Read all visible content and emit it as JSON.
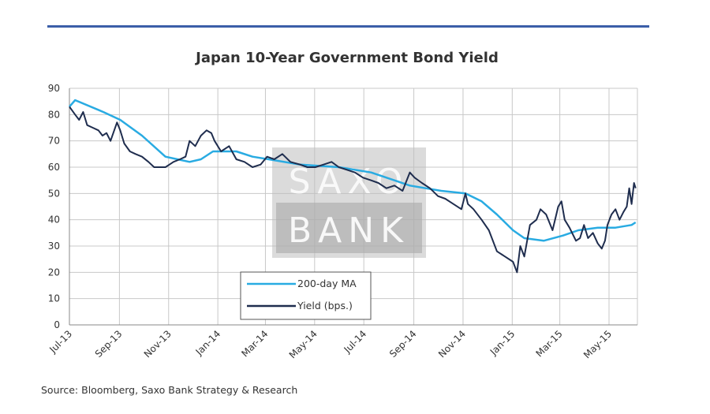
{
  "chart_data": {
    "type": "line",
    "title": "Japan 10-Year Government Bond Yield",
    "source": "Source: Bloomberg, Saxo Bank Strategy & Research",
    "watermark": [
      "SAXO",
      "BANK"
    ],
    "ylim": [
      0,
      90
    ],
    "yticks": [
      0,
      10,
      20,
      30,
      40,
      50,
      60,
      70,
      80,
      90
    ],
    "xtick_labels": [
      "Jul-13",
      "Sep-13",
      "Nov-13",
      "Jan-14",
      "Mar-14",
      "May-14",
      "Jul-14",
      "Sep-14",
      "Nov-14",
      "Jan-15",
      "Mar-15",
      "May-15"
    ],
    "xtick_dates": [
      "2013-07-01",
      "2013-09-01",
      "2013-11-01",
      "2014-01-01",
      "2014-03-01",
      "2014-05-01",
      "2014-07-01",
      "2014-09-01",
      "2014-11-01",
      "2015-01-01",
      "2015-03-01",
      "2015-05-01"
    ],
    "grid": true,
    "legend_position": "bottom-center",
    "series": [
      {
        "name": "200-day MA",
        "color": "#29abe2",
        "points": [
          [
            "2013-07-01",
            83
          ],
          [
            "2013-07-08",
            85.5
          ],
          [
            "2013-08-12",
            81
          ],
          [
            "2013-09-02",
            78
          ],
          [
            "2013-09-29",
            72
          ],
          [
            "2013-10-28",
            64
          ],
          [
            "2013-11-12",
            63
          ],
          [
            "2013-11-27",
            62
          ],
          [
            "2013-12-11",
            63
          ],
          [
            "2013-12-26",
            66
          ],
          [
            "2014-01-24",
            66
          ],
          [
            "2014-02-13",
            64
          ],
          [
            "2014-03-05",
            63
          ],
          [
            "2014-04-13",
            61
          ],
          [
            "2014-05-31",
            60
          ],
          [
            "2014-07-10",
            58
          ],
          [
            "2014-08-08",
            55
          ],
          [
            "2014-08-27",
            53
          ],
          [
            "2014-10-05",
            51
          ],
          [
            "2014-11-04",
            50
          ],
          [
            "2014-11-24",
            47
          ],
          [
            "2014-12-13",
            42
          ],
          [
            "2015-01-02",
            36
          ],
          [
            "2015-01-16",
            33
          ],
          [
            "2015-02-09",
            32
          ],
          [
            "2015-03-05",
            34
          ],
          [
            "2015-03-24",
            36
          ],
          [
            "2015-04-17",
            37
          ],
          [
            "2015-05-09",
            37
          ],
          [
            "2015-05-29",
            38
          ],
          [
            "2015-06-03",
            39
          ]
        ]
      },
      {
        "name": "Yield (bps.)",
        "color": "#1f2d4e",
        "points": [
          [
            "2013-07-01",
            83
          ],
          [
            "2013-07-08",
            80
          ],
          [
            "2013-07-13",
            78
          ],
          [
            "2013-07-18",
            81
          ],
          [
            "2013-07-23",
            76
          ],
          [
            "2013-07-30",
            75
          ],
          [
            "2013-08-06",
            74
          ],
          [
            "2013-08-11",
            72
          ],
          [
            "2013-08-16",
            73
          ],
          [
            "2013-08-21",
            70
          ],
          [
            "2013-08-29",
            77
          ],
          [
            "2013-09-02",
            74
          ],
          [
            "2013-09-07",
            69
          ],
          [
            "2013-09-14",
            66
          ],
          [
            "2013-09-21",
            65
          ],
          [
            "2013-09-29",
            64
          ],
          [
            "2013-10-07",
            62
          ],
          [
            "2013-10-14",
            60
          ],
          [
            "2013-10-19",
            60
          ],
          [
            "2013-10-28",
            60
          ],
          [
            "2013-11-02",
            61
          ],
          [
            "2013-11-07",
            62
          ],
          [
            "2013-11-15",
            63
          ],
          [
            "2013-11-22",
            64
          ],
          [
            "2013-11-27",
            70
          ],
          [
            "2013-12-04",
            68
          ],
          [
            "2013-12-11",
            72
          ],
          [
            "2013-12-18",
            74
          ],
          [
            "2013-12-24",
            73
          ],
          [
            "2013-12-28",
            70
          ],
          [
            "2014-01-05",
            66
          ],
          [
            "2014-01-15",
            68
          ],
          [
            "2014-01-24",
            63
          ],
          [
            "2014-02-03",
            62
          ],
          [
            "2014-02-13",
            60
          ],
          [
            "2014-02-23",
            61
          ],
          [
            "2014-03-03",
            64
          ],
          [
            "2014-03-12",
            63
          ],
          [
            "2014-03-22",
            65
          ],
          [
            "2014-04-01",
            62
          ],
          [
            "2014-04-13",
            61
          ],
          [
            "2014-04-22",
            60
          ],
          [
            "2014-05-02",
            60
          ],
          [
            "2014-05-12",
            61
          ],
          [
            "2014-05-22",
            62
          ],
          [
            "2014-05-31",
            60
          ],
          [
            "2014-06-10",
            59
          ],
          [
            "2014-06-20",
            58
          ],
          [
            "2014-06-30",
            56
          ],
          [
            "2014-07-10",
            55
          ],
          [
            "2014-07-19",
            54
          ],
          [
            "2014-07-29",
            52
          ],
          [
            "2014-08-08",
            53
          ],
          [
            "2014-08-18",
            51
          ],
          [
            "2014-08-27",
            58
          ],
          [
            "2014-09-02",
            56
          ],
          [
            "2014-09-11",
            54
          ],
          [
            "2014-09-21",
            52
          ],
          [
            "2014-10-01",
            49
          ],
          [
            "2014-10-10",
            48
          ],
          [
            "2014-10-20",
            46
          ],
          [
            "2014-10-30",
            44
          ],
          [
            "2014-11-04",
            50
          ],
          [
            "2014-11-07",
            46
          ],
          [
            "2014-11-14",
            44
          ],
          [
            "2014-11-24",
            40
          ],
          [
            "2014-12-03",
            36
          ],
          [
            "2014-12-13",
            28
          ],
          [
            "2014-12-23",
            26
          ],
          [
            "2015-01-02",
            24
          ],
          [
            "2015-01-07",
            20
          ],
          [
            "2015-01-11",
            30
          ],
          [
            "2015-01-16",
            26
          ],
          [
            "2015-01-23",
            38
          ],
          [
            "2015-01-31",
            40
          ],
          [
            "2015-02-05",
            44
          ],
          [
            "2015-02-12",
            42
          ],
          [
            "2015-02-20",
            36
          ],
          [
            "2015-02-27",
            45
          ],
          [
            "2015-03-03",
            47
          ],
          [
            "2015-03-07",
            40
          ],
          [
            "2015-03-13",
            37
          ],
          [
            "2015-03-21",
            32
          ],
          [
            "2015-03-26",
            33
          ],
          [
            "2015-03-31",
            38
          ],
          [
            "2015-04-05",
            33
          ],
          [
            "2015-04-11",
            35
          ],
          [
            "2015-04-17",
            31
          ],
          [
            "2015-04-22",
            29
          ],
          [
            "2015-04-26",
            32
          ],
          [
            "2015-04-29",
            38
          ],
          [
            "2015-05-04",
            42
          ],
          [
            "2015-05-09",
            44
          ],
          [
            "2015-05-14",
            40
          ],
          [
            "2015-05-19",
            43
          ],
          [
            "2015-05-23",
            45
          ],
          [
            "2015-05-26",
            52
          ],
          [
            "2015-05-29",
            46
          ],
          [
            "2015-06-01",
            54
          ],
          [
            "2015-06-03",
            52
          ]
        ]
      }
    ]
  }
}
